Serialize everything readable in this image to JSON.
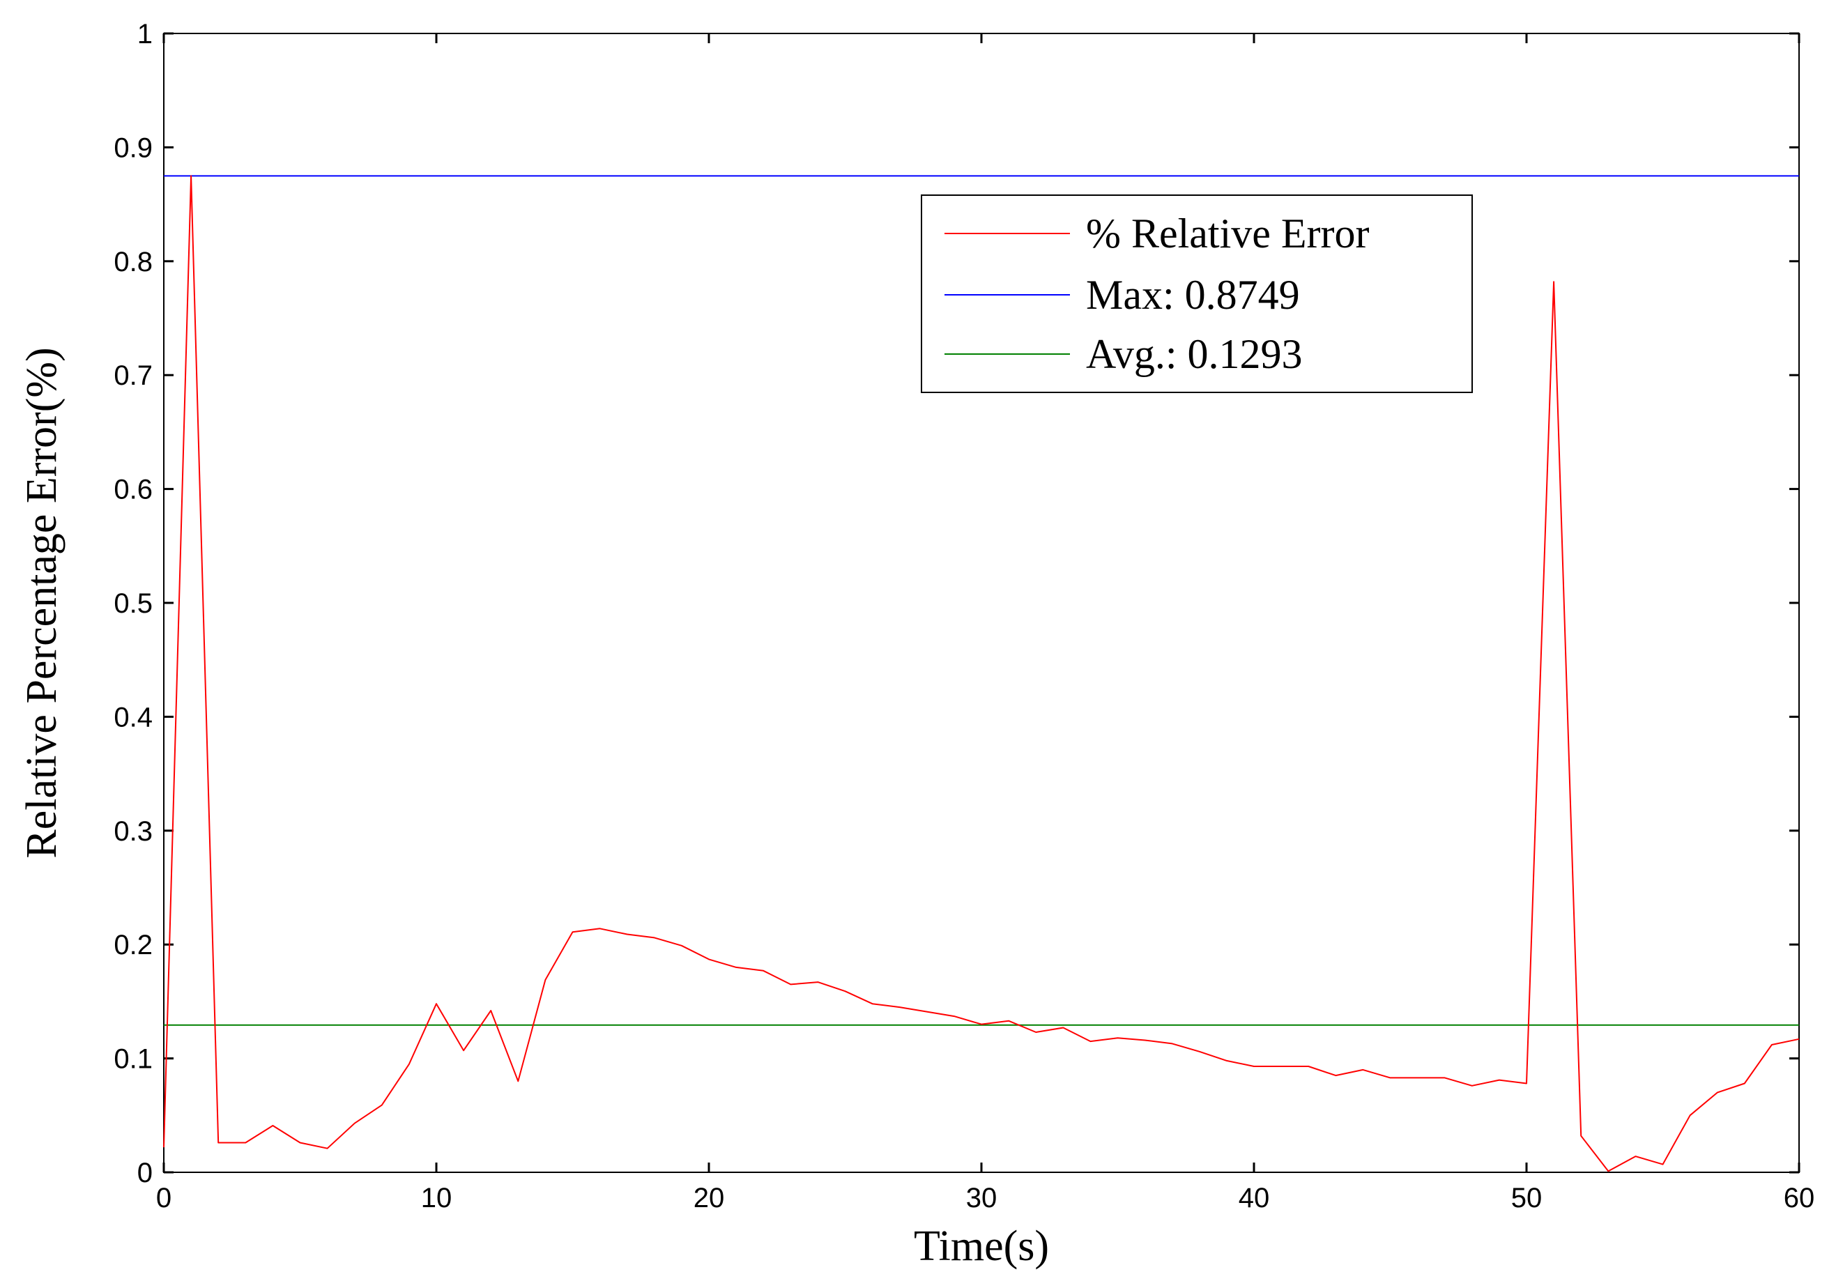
{
  "chart_data": {
    "type": "line",
    "xlabel": "Time(s)",
    "ylabel": "Relative Percentage Error(%)",
    "xlim": [
      0,
      60
    ],
    "ylim": [
      0,
      1
    ],
    "xticks": [
      "0",
      "10",
      "20",
      "30",
      "40",
      "50",
      "60"
    ],
    "yticks": [
      "0",
      "0.1",
      "0.2",
      "0.3",
      "0.4",
      "0.5",
      "0.6",
      "0.7",
      "0.8",
      "0.9",
      "1"
    ],
    "grid": false,
    "legend_position": "top-right",
    "series": [
      {
        "name": "% Relative Error",
        "color": "#ff0000",
        "x": [
          0,
          1,
          2,
          3,
          4,
          5,
          6,
          7,
          8,
          9,
          10,
          11,
          12,
          13,
          14,
          15,
          16,
          17,
          18,
          19,
          20,
          21,
          22,
          23,
          24,
          25,
          26,
          27,
          28,
          29,
          30,
          31,
          32,
          33,
          34,
          35,
          36,
          37,
          38,
          39,
          40,
          41,
          42,
          43,
          44,
          45,
          46,
          47,
          48,
          49,
          50,
          51,
          52,
          53,
          54,
          55,
          56,
          57,
          58,
          59,
          60
        ],
        "y": [
          0.022,
          0.875,
          0.026,
          0.026,
          0.041,
          0.026,
          0.021,
          0.043,
          0.059,
          0.095,
          0.148,
          0.107,
          0.142,
          0.08,
          0.169,
          0.211,
          0.214,
          0.209,
          0.206,
          0.199,
          0.187,
          0.18,
          0.177,
          0.165,
          0.167,
          0.159,
          0.148,
          0.145,
          0.141,
          0.137,
          0.13,
          0.133,
          0.123,
          0.127,
          0.115,
          0.118,
          0.116,
          0.113,
          0.106,
          0.098,
          0.093,
          0.093,
          0.093,
          0.085,
          0.09,
          0.083,
          0.083,
          0.083,
          0.076,
          0.081,
          0.078,
          0.782,
          0.032,
          0.001,
          0.014,
          0.007,
          0.05,
          0.07,
          0.078,
          0.112,
          0.117
        ]
      },
      {
        "name": "Max: 0.8749",
        "color": "#0000ff",
        "value": 0.8749
      },
      {
        "name": "Avg.: 0.1293",
        "color": "#008000",
        "value": 0.1293
      }
    ]
  }
}
